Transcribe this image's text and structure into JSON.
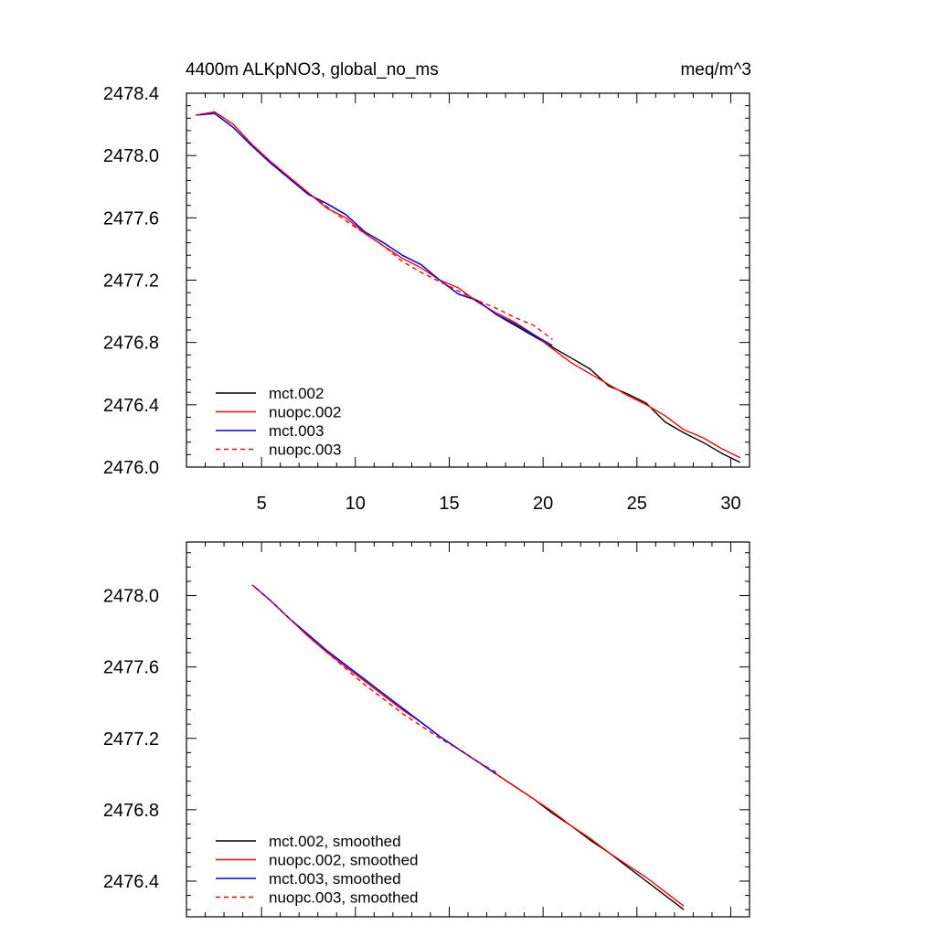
{
  "chart_data": [
    {
      "type": "line",
      "title": "4400m ALKpNO3, global_no_ms",
      "units": "meq/m^3",
      "xlim": [
        1,
        31
      ],
      "ylim": [
        2476.0,
        2478.4
      ],
      "x_ticks": [
        5,
        10,
        15,
        20,
        25,
        30
      ],
      "y_ticks": [
        2476.0,
        2476.4,
        2476.8,
        2477.2,
        2477.6,
        2478.0,
        2478.4
      ],
      "y_tick_labels": [
        "2476.0",
        "2476.4",
        "2476.8",
        "2477.2",
        "2477.6",
        "2478.0",
        "2478.4"
      ],
      "legend_position": "bottom-left",
      "series": [
        {
          "name": "mct.002",
          "color": "#000000",
          "dash": "solid",
          "x": [
            1.5,
            2.5,
            3.5,
            4.5,
            5.5,
            6.5,
            7.5,
            8.5,
            9.5,
            10.5,
            11.5,
            12.5,
            13.5,
            14.5,
            15.5,
            16.5,
            17.5,
            18.5,
            19.5,
            20.5,
            21.5,
            22.5,
            23.5,
            24.5,
            25.5,
            26.5,
            27.5,
            28.5,
            29.5,
            30.5
          ],
          "y": [
            2478.26,
            2478.27,
            2478.18,
            2478.06,
            2477.95,
            2477.85,
            2477.75,
            2477.69,
            2477.62,
            2477.51,
            2477.44,
            2477.36,
            2477.3,
            2477.2,
            2477.11,
            2477.07,
            2476.98,
            2476.91,
            2476.84,
            2476.77,
            2476.7,
            2476.63,
            2476.52,
            2476.47,
            2476.41,
            2476.29,
            2476.22,
            2476.16,
            2476.09,
            2476.03
          ]
        },
        {
          "name": "nuopc.002",
          "color": "#ff0000",
          "dash": "solid",
          "x": [
            1.5,
            2.5,
            3.5,
            4.5,
            5.5,
            6.5,
            7.5,
            8.5,
            9.5,
            10.5,
            11.5,
            12.5,
            13.5,
            14.5,
            15.5,
            16.5,
            17.5,
            18.5,
            19.5,
            20.5,
            21.5,
            22.5,
            23.5,
            24.5,
            25.5,
            26.5,
            27.5,
            28.5,
            29.5,
            30.5
          ],
          "y": [
            2478.26,
            2478.28,
            2478.2,
            2478.07,
            2477.96,
            2477.86,
            2477.76,
            2477.66,
            2477.6,
            2477.5,
            2477.42,
            2477.34,
            2477.28,
            2477.2,
            2477.15,
            2477.06,
            2476.99,
            2476.93,
            2476.85,
            2476.76,
            2476.67,
            2476.6,
            2476.53,
            2476.46,
            2476.4,
            2476.33,
            2476.24,
            2476.19,
            2476.12,
            2476.06
          ]
        },
        {
          "name": "mct.003",
          "color": "#0000ff",
          "dash": "solid",
          "x": [
            1.5,
            2.5,
            3.5,
            4.5,
            5.5,
            6.5,
            7.5,
            8.5,
            9.5,
            10.5,
            11.5,
            12.5,
            13.5,
            14.5,
            15.5,
            16.5,
            17.5,
            18.5,
            19.5,
            20.5
          ],
          "y": [
            2478.26,
            2478.27,
            2478.18,
            2478.06,
            2477.95,
            2477.85,
            2477.75,
            2477.69,
            2477.62,
            2477.51,
            2477.44,
            2477.36,
            2477.3,
            2477.2,
            2477.11,
            2477.07,
            2476.98,
            2476.92,
            2476.85,
            2476.78
          ]
        },
        {
          "name": "nuopc.003",
          "color": "#ff0000",
          "dash": "dashed",
          "x": [
            1.5,
            2.5,
            3.5,
            4.5,
            5.5,
            6.5,
            7.5,
            8.5,
            9.5,
            10.5,
            11.5,
            12.5,
            13.5,
            14.5,
            15.5,
            16.5,
            17.5,
            18.5,
            19.5,
            20.5
          ],
          "y": [
            2478.26,
            2478.28,
            2478.2,
            2478.07,
            2477.96,
            2477.86,
            2477.76,
            2477.67,
            2477.58,
            2477.5,
            2477.42,
            2477.32,
            2477.25,
            2477.19,
            2477.13,
            2477.07,
            2477.02,
            2476.96,
            2476.91,
            2476.82
          ]
        }
      ]
    },
    {
      "type": "line",
      "title": "",
      "xlim": [
        1,
        31
      ],
      "ylim": [
        2476.2,
        2478.3
      ],
      "x_ticks": [
        5,
        10,
        15,
        20,
        25,
        30
      ],
      "y_ticks": [
        2476.4,
        2476.8,
        2477.2,
        2477.6,
        2478.0
      ],
      "y_tick_labels": [
        "2476.4",
        "2476.8",
        "2477.2",
        "2477.6",
        "2478.0"
      ],
      "legend_position": "bottom-left",
      "series": [
        {
          "name": "mct.002, smoothed",
          "color": "#000000",
          "dash": "solid",
          "x": [
            4.5,
            5.5,
            6.5,
            7.5,
            8.5,
            9.5,
            10.5,
            11.5,
            12.5,
            13.5,
            14.5,
            15.5,
            16.5,
            17.5,
            18.5,
            19.5,
            20.5,
            21.5,
            22.5,
            23.5,
            24.5,
            25.5,
            26.5,
            27.5
          ],
          "y": [
            2478.06,
            2477.97,
            2477.87,
            2477.78,
            2477.69,
            2477.61,
            2477.53,
            2477.45,
            2477.37,
            2477.29,
            2477.21,
            2477.14,
            2477.07,
            2477.0,
            2476.93,
            2476.86,
            2476.78,
            2476.71,
            2476.63,
            2476.56,
            2476.48,
            2476.4,
            2476.32,
            2476.24
          ]
        },
        {
          "name": "nuopc.002, smoothed",
          "color": "#ff0000",
          "dash": "solid",
          "x": [
            4.5,
            5.5,
            6.5,
            7.5,
            8.5,
            9.5,
            10.5,
            11.5,
            12.5,
            13.5,
            14.5,
            15.5,
            16.5,
            17.5,
            18.5,
            19.5,
            20.5,
            21.5,
            22.5,
            23.5,
            24.5,
            25.5,
            26.5,
            27.5
          ],
          "y": [
            2478.06,
            2477.97,
            2477.87,
            2477.77,
            2477.68,
            2477.6,
            2477.52,
            2477.44,
            2477.36,
            2477.29,
            2477.21,
            2477.14,
            2477.07,
            2477.0,
            2476.93,
            2476.86,
            2476.79,
            2476.71,
            2476.64,
            2476.56,
            2476.49,
            2476.42,
            2476.34,
            2476.26
          ]
        },
        {
          "name": "mct.003, smoothed",
          "color": "#0000ff",
          "dash": "solid",
          "x": [
            4.5,
            5.5,
            6.5,
            7.5,
            8.5,
            9.5,
            10.5,
            11.5,
            12.5,
            13.5,
            14.5,
            15.5,
            16.5,
            17.5
          ],
          "y": [
            2478.06,
            2477.97,
            2477.87,
            2477.78,
            2477.69,
            2477.61,
            2477.53,
            2477.45,
            2477.37,
            2477.29,
            2477.21,
            2477.14,
            2477.07,
            2477.0
          ]
        },
        {
          "name": "nuopc.003, smoothed",
          "color": "#ff0000",
          "dash": "dashed",
          "x": [
            4.5,
            5.5,
            6.5,
            7.5,
            8.5,
            9.5,
            10.5,
            11.5,
            12.5,
            13.5,
            14.5,
            15.5,
            16.5,
            17.5
          ],
          "y": [
            2478.06,
            2477.97,
            2477.87,
            2477.77,
            2477.68,
            2477.59,
            2477.5,
            2477.42,
            2477.34,
            2477.27,
            2477.2,
            2477.14,
            2477.07,
            2477.01
          ]
        }
      ]
    }
  ]
}
